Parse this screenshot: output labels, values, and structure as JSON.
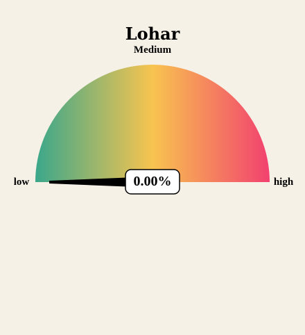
{
  "chart_data": {
    "type": "gauge",
    "title": "Lohar",
    "subtitle": "Medium",
    "min_label": "low",
    "max_label": "high",
    "value": 0.0,
    "value_label": "0.00%",
    "range": [
      0,
      100
    ],
    "colors": {
      "low": "#3aa78b",
      "mid": "#f8c44f",
      "high": "#f2416f",
      "background": "#f6f1e7",
      "needle": "#000000",
      "value_box_fill": "#ffffff",
      "value_box_stroke": "#000000"
    }
  }
}
